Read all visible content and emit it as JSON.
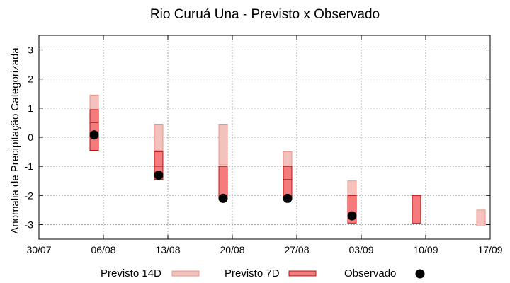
{
  "chart_data": {
    "type": "bar",
    "title": "Rio Curuá Una - Previsto x Observado",
    "xlabel": "",
    "ylabel": "Anomalia de Precipitação Categorizada",
    "ylim": [
      -3.5,
      3.5
    ],
    "yticks": [
      -3,
      -2,
      -1,
      0,
      1,
      2,
      3
    ],
    "xlim": [
      "2023-07-30",
      "2023-09-17"
    ],
    "xticks": [
      "30/07",
      "06/08",
      "13/08",
      "20/08",
      "27/08",
      "03/09",
      "10/09",
      "17/09"
    ],
    "grid": true,
    "legend": "bottom",
    "series": [
      {
        "name": "Previsto 14D",
        "kind": "range",
        "color": "#f4c2bc",
        "edge": "#ee8a80",
        "points": [
          {
            "date": "2023-08-05",
            "low": -0.45,
            "high": 1.45,
            "mid": 0.5
          },
          {
            "date": "2023-08-12",
            "low": -0.45,
            "high": 0.45,
            "mid": null
          },
          {
            "date": "2023-08-19",
            "low": -0.95,
            "high": 0.45,
            "mid": null
          },
          {
            "date": "2023-08-26",
            "low": -1.5,
            "high": -0.5,
            "mid": null
          },
          {
            "date": "2023-09-02",
            "low": -2.5,
            "high": -1.5,
            "mid": null
          },
          {
            "date": "2023-09-16",
            "low": -3.05,
            "high": -2.5,
            "mid": null
          }
        ]
      },
      {
        "name": "Previsto 7D",
        "kind": "range",
        "color": "#f47c7c",
        "edge": "#c40000",
        "points": [
          {
            "date": "2023-08-05",
            "low": -0.45,
            "high": 0.95,
            "mid": 0.5
          },
          {
            "date": "2023-08-12",
            "low": -1.45,
            "high": -0.5,
            "mid": -1.0
          },
          {
            "date": "2023-08-19",
            "low": -2.1,
            "high": -1.0,
            "mid": null
          },
          {
            "date": "2023-08-26",
            "low": -2.1,
            "high": -1.0,
            "mid": -1.45
          },
          {
            "date": "2023-09-02",
            "low": -2.95,
            "high": -2.0,
            "mid": null
          },
          {
            "date": "2023-09-09",
            "low": -2.95,
            "high": -2.0,
            "mid": null
          }
        ]
      },
      {
        "name": "Observado",
        "kind": "point",
        "color": "#000000",
        "points": [
          {
            "date": "2023-08-05",
            "value": 0.08
          },
          {
            "date": "2023-08-12",
            "value": -1.3
          },
          {
            "date": "2023-08-19",
            "value": -2.1
          },
          {
            "date": "2023-08-26",
            "value": -2.1
          },
          {
            "date": "2023-09-02",
            "value": -2.7
          }
        ]
      }
    ]
  }
}
